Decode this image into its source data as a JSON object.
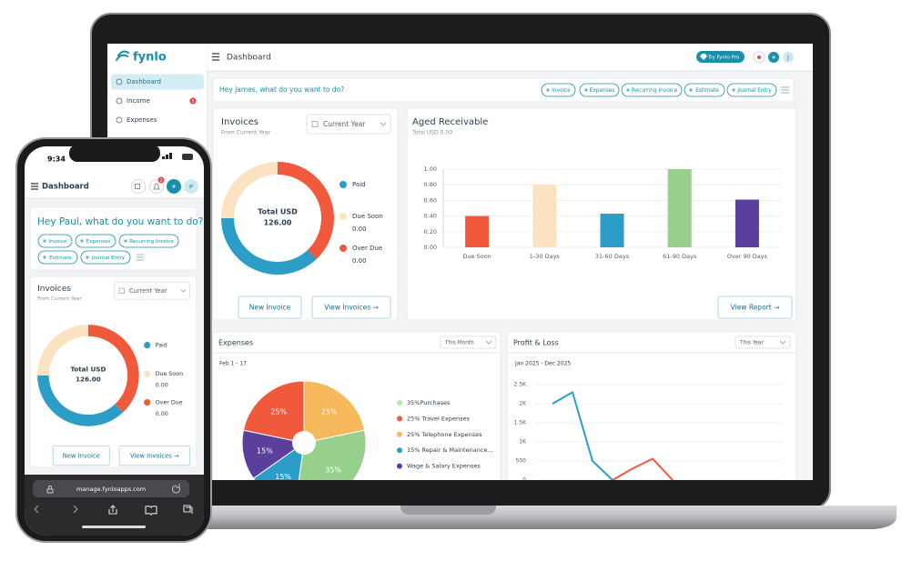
{
  "laptop": {
    "brand": "fynlo",
    "sidebar": [
      {
        "label": "Dashboard"
      },
      {
        "label": "Income",
        "badge": "5"
      },
      {
        "label": "Expenses"
      }
    ],
    "topbar": {
      "title": "Dashboard",
      "pro": "Try Fynlo Pro",
      "avatar": "J"
    },
    "quick": {
      "greeting": "Hey James, what do you want to do?",
      "actions": [
        "Invoice",
        "Expenses",
        "Recurring Invoice",
        "Estimate",
        "Journal Entry"
      ]
    },
    "invoices": {
      "title": "Invoices",
      "subtitle": "From Current Year",
      "filter": "Current Year",
      "total_label": "Total USD",
      "total": "126.00",
      "legend": [
        {
          "name": "Paid",
          "color": "#2b9dc6",
          "share": 37
        },
        {
          "name": "Due Soon",
          "color": "#fbe3c2",
          "value": "0.00",
          "share": 25
        },
        {
          "name": "Over Due",
          "color": "#f0593b",
          "value": "0.00",
          "share": 38
        }
      ],
      "buttons": [
        "New Invoice",
        "View Invoices →"
      ]
    },
    "aged": {
      "title": "Aged Receivable",
      "subtitle": "Total USD 0.00",
      "categories": [
        "Due Soon",
        "1-30 Days",
        "31-60 Days",
        "61-90 Days",
        "Over 90 Days"
      ],
      "values": [
        0.4,
        0.8,
        0.43,
        1.0,
        0.61
      ],
      "colors": [
        "#f0593b",
        "#fbe3c2",
        "#2b9dc6",
        "#97d08d",
        "#5b3f9c"
      ],
      "ylim": [
        0,
        1
      ],
      "yticks": [
        {
          "value": 0,
          "label": "0.00"
        },
        {
          "value": 0.2,
          "label": "0.20"
        },
        {
          "value": 0.4,
          "label": "0.40"
        },
        {
          "value": 0.6,
          "label": "0.60"
        },
        {
          "value": 0.8,
          "label": "0.80"
        },
        {
          "value": 1,
          "label": "1.00"
        }
      ],
      "button": "View Report →"
    },
    "expenses": {
      "title": "Expenses",
      "filter": "This Month",
      "period": "Feb 1 - 17",
      "slices": [
        {
          "label": "25%",
          "value": 25,
          "color": "#f5b95b"
        },
        {
          "label": "35%",
          "value": 35,
          "color": "#97d08d"
        },
        {
          "label": "15%",
          "value": 15,
          "color": "#2b9dc6"
        },
        {
          "label": "15%",
          "value": 15,
          "color": "#5b3f9c"
        },
        {
          "label": "25%",
          "value": 25,
          "color": "#f0593b"
        }
      ],
      "legend": [
        {
          "text": "35%Purchases",
          "color": "#b6e7a8"
        },
        {
          "text": "25% Travel Expenses",
          "color": "#f0593b"
        },
        {
          "text": "25% Telephone Expenses",
          "color": "#f5b95b"
        },
        {
          "text": "15% Repair & Maintenance...",
          "color": "#2b9dc6"
        },
        {
          "text": "Wage & Salary Expenses",
          "color": "#5b3f9c"
        }
      ]
    },
    "profit_loss": {
      "title": "Profit & Loss",
      "filter": "This Year",
      "period": "Jan 2025 - Dec 2025",
      "ylim": [
        0,
        2500
      ],
      "yticks": [
        0,
        500,
        {
          "value": 1000,
          "label": "1K"
        },
        {
          "value": 1500,
          "label": "1.5K"
        },
        {
          "value": 2000,
          "label": "2K"
        },
        {
          "value": 2500,
          "label": "2.5K"
        }
      ],
      "series": [
        {
          "color": "#2b9dc6",
          "values": [
            2000,
            2300,
            500,
            0,
            null,
            null,
            null
          ]
        },
        {
          "color": "#f0593b",
          "values": [
            null,
            null,
            null,
            0,
            300,
            560,
            0
          ]
        }
      ]
    }
  },
  "phone": {
    "time": "9:34",
    "title": "Dashboard",
    "badge": "2",
    "avatar": "P",
    "quick": {
      "greeting": "Hey Paul, what do you want to do?",
      "actions": [
        "Invoice",
        "Expenses",
        "Recurring Invoice",
        "Estimate",
        "Journal Entry"
      ]
    },
    "invoices": {
      "title": "Invoices",
      "subtitle": "From Current Year",
      "filter": "Current Year",
      "total_label": "Total USD",
      "total": "126.00",
      "legend": [
        {
          "name": "Paid",
          "color": "#2b9dc6",
          "share": 37
        },
        {
          "name": "Due Soon",
          "color": "#fbe3c2",
          "value": "0.00",
          "share": 25
        },
        {
          "name": "Over Due",
          "color": "#f0593b",
          "value": "0.00",
          "share": 38
        }
      ],
      "buttons": [
        "New Invoice",
        "View Invoices →"
      ]
    },
    "url": "manage.fynloapps.com"
  }
}
